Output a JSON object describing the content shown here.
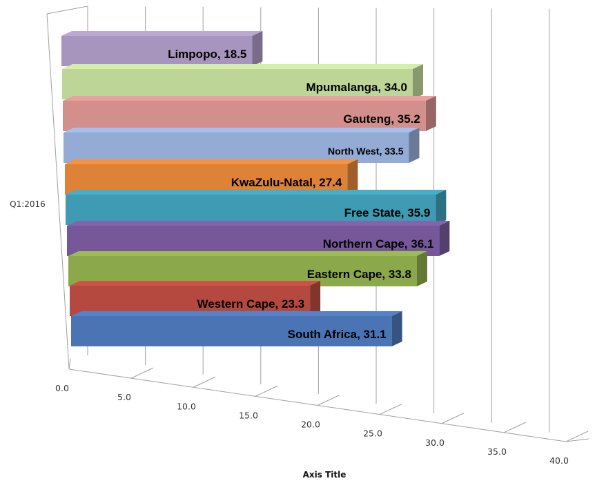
{
  "chart_data": {
    "type": "bar",
    "orientation": "horizontal",
    "style": "3d-clustered",
    "category": "Q1:2016",
    "xlabel": "Axis Title",
    "xlim": [
      0,
      40
    ],
    "x_ticks": [
      "0.0",
      "5.0",
      "10.0",
      "15.0",
      "20.0",
      "25.0",
      "30.0",
      "35.0",
      "40.0"
    ],
    "grid": true,
    "legend": "none",
    "series": [
      {
        "name": "South Africa",
        "value": 31.1,
        "label": "South Africa, 31.1",
        "color": "#4a74b4"
      },
      {
        "name": "Western Cape",
        "value": 23.3,
        "label": "Western Cape, 23.3",
        "color": "#b5493f"
      },
      {
        "name": "Eastern Cape",
        "value": 33.8,
        "label": "Eastern Cape, 33.8",
        "color": "#8ba84a"
      },
      {
        "name": "Northern Cape",
        "value": 36.1,
        "label": "Northern Cape, 36.1",
        "color": "#76589a"
      },
      {
        "name": "Free State",
        "value": 35.9,
        "label": "Free State, 35.9",
        "color": "#3f9bb3"
      },
      {
        "name": "KwaZulu-Natal",
        "value": 27.4,
        "label": "KwaZulu-Natal, 27.4",
        "color": "#de8237"
      },
      {
        "name": "North West",
        "value": 33.5,
        "label": "North West, 33.5",
        "color": "#93abd5"
      },
      {
        "name": "Gauteng",
        "value": 35.2,
        "label": "Gauteng, 35.2",
        "color": "#d38f8c"
      },
      {
        "name": "Mpumalanga",
        "value": 34.0,
        "label": "Mpumalanga, 34.0",
        "color": "#bdd597"
      },
      {
        "name": "Limpopo",
        "value": 18.5,
        "label": "Limpopo, 18.5",
        "color": "#a895be"
      }
    ]
  }
}
